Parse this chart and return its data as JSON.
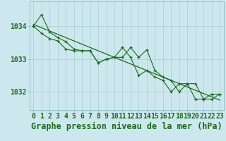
{
  "title": "Graphe pression niveau de la mer (hPa)",
  "background_color": "#cce8ee",
  "grid_color": "#aacccc",
  "line_color": "#1a6b1a",
  "xlim": [
    -0.5,
    23.5
  ],
  "ylim": [
    1031.45,
    1034.75
  ],
  "yticks": [
    1032,
    1033,
    1034
  ],
  "xticks": [
    0,
    1,
    2,
    3,
    4,
    5,
    6,
    7,
    8,
    9,
    10,
    11,
    12,
    13,
    14,
    15,
    16,
    17,
    18,
    19,
    20,
    21,
    22,
    23
  ],
  "series1": [
    1034.0,
    1034.35,
    1033.82,
    1033.65,
    1033.53,
    1033.3,
    1033.25,
    1033.25,
    1032.88,
    1033.0,
    1033.05,
    1033.05,
    1033.35,
    1033.05,
    1033.28,
    1032.65,
    1032.45,
    1032.35,
    1032.0,
    1032.25,
    1032.25,
    1031.78,
    1031.78,
    1031.93
  ],
  "series2": [
    1034.0,
    1033.78,
    1033.62,
    1033.55,
    1033.3,
    1033.25,
    1033.25,
    1033.25,
    1032.88,
    1033.0,
    1033.05,
    1033.35,
    1033.05,
    1032.5,
    1032.65,
    1032.45,
    1032.35,
    1032.0,
    1032.25,
    1032.25,
    1031.78,
    1031.78,
    1031.93,
    1031.93
  ],
  "trend_x": [
    0,
    23
  ],
  "trend_y": [
    1034.05,
    1031.75
  ],
  "tick_fontsize": 7,
  "title_fontsize": 8.5
}
